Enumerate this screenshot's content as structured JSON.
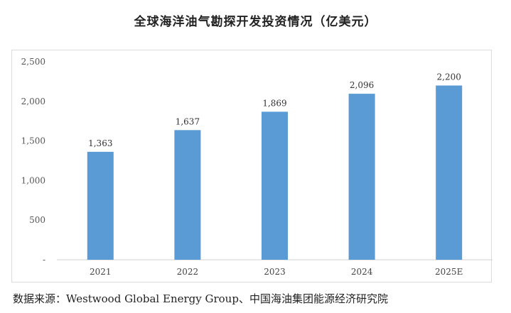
{
  "source": "数据来源：Westwood Global Energy Group、中国海油集团能源经济研究院",
  "chart_data": {
    "type": "bar",
    "title": "全球海洋油气勘探开发投资情况（亿美元）",
    "categories": [
      "2021",
      "2022",
      "2023",
      "2024",
      "2025E"
    ],
    "values": [
      1363,
      1637,
      1869,
      2096,
      2200
    ],
    "value_labels": [
      "1,363",
      "1,637",
      "1,869",
      "2,096",
      "2,200"
    ],
    "yticks": [
      0,
      500,
      1000,
      1500,
      2000,
      2500
    ],
    "ytick_labels": [
      "-",
      "500",
      "1,000",
      "1,500",
      "2,000",
      "2,500"
    ],
    "ylim": [
      0,
      2500
    ],
    "grid": false,
    "legend": "none",
    "bar_color": "#5B9BD5"
  }
}
